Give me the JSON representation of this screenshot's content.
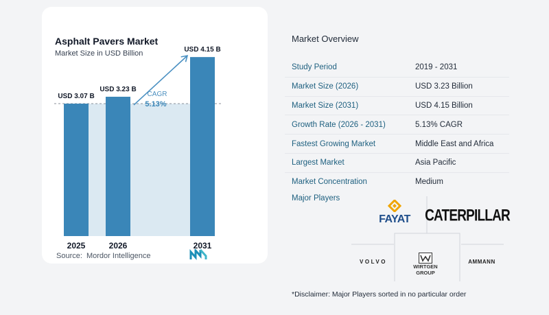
{
  "chart_data": {
    "type": "bar",
    "title": "Asphalt Pavers Market",
    "subtitle": "Market Size in USD Billion",
    "categories": [
      "2025",
      "2026",
      "2031"
    ],
    "values": [
      3.07,
      3.23,
      4.15
    ],
    "data_labels": [
      "USD 3.07 B",
      "USD 3.23 B",
      "USD 4.15 B"
    ],
    "cagr_label": "CAGR",
    "cagr_value": "5.13%",
    "ylim": [
      0,
      4.2
    ],
    "grid": false,
    "colors": {
      "bar": "#3a86b8",
      "band": "#dbe9f2",
      "arrow": "#4a90c2",
      "dashed": "#8a8f98"
    }
  },
  "source": {
    "label": "Source:",
    "value": "Mordor Intelligence"
  },
  "overview": {
    "title": "Market Overview",
    "rows": [
      {
        "key": "Study Period",
        "value": "2019 - 2031"
      },
      {
        "key": "Market Size (2026)",
        "value": "USD 3.23 Billion"
      },
      {
        "key": "Market Size (2031)",
        "value": "USD 4.15 Billion"
      },
      {
        "key": "Growth Rate (2026 - 2031)",
        "value": "5.13% CAGR"
      },
      {
        "key": "Fastest Growing Market",
        "value": "Middle East and Africa"
      },
      {
        "key": "Largest Market",
        "value": "Asia Pacific"
      },
      {
        "key": "Market Concentration",
        "value": "Medium"
      }
    ],
    "players_title": "Major Players",
    "players": {
      "fayat": "FAYAT",
      "caterpillar": "CATERPILLAR",
      "volvo": "VOLVO",
      "wirtgen_line1": "WIRTGEN",
      "wirtgen_line2": "GROUP",
      "ammann": "AMMANN"
    },
    "disclaimer": "*Disclaimer: Major Players sorted in no particular order"
  },
  "colors": {
    "key_text": "#1d5f7f",
    "accent": "#3a86b8"
  }
}
